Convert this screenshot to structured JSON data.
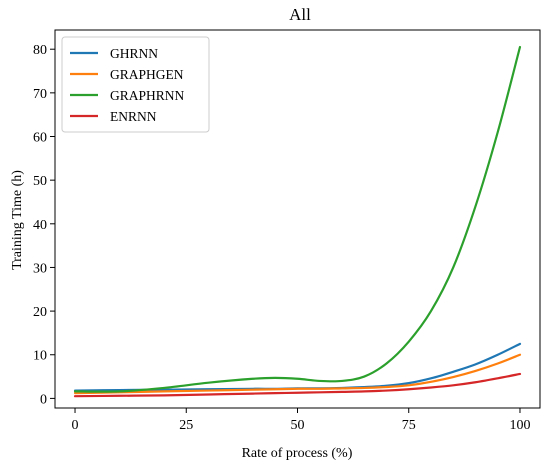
{
  "chart_data": {
    "type": "line",
    "title": "All",
    "xlabel": "Rate of process (%)",
    "ylabel": "Training Time (h)",
    "xlim": [
      -4.5,
      104.5
    ],
    "ylim": [
      -2.2,
      84.4
    ],
    "xticks": [
      0,
      25,
      50,
      75,
      100
    ],
    "yticks": [
      0,
      10,
      20,
      30,
      40,
      50,
      60,
      70,
      80
    ],
    "grid": false,
    "legend": "top-left",
    "x": [
      0,
      10,
      20,
      30,
      40,
      45,
      50,
      55,
      60,
      65,
      70,
      75,
      80,
      85,
      90,
      95,
      100
    ],
    "series": [
      {
        "name": "GHRNN",
        "color": "#1f77b4",
        "values": [
          1.8,
          1.9,
          2.0,
          2.1,
          2.2,
          2.2,
          2.3,
          2.3,
          2.4,
          2.6,
          2.9,
          3.5,
          4.6,
          6.1,
          7.8,
          10.0,
          12.5
        ]
      },
      {
        "name": "GRAPHGEN",
        "color": "#ff7f0e",
        "values": [
          1.2,
          1.4,
          1.6,
          1.8,
          2.0,
          2.1,
          2.2,
          2.2,
          2.3,
          2.4,
          2.6,
          3.0,
          3.8,
          4.9,
          6.3,
          8.0,
          10.0
        ]
      },
      {
        "name": "GRAPHRNN",
        "color": "#2ca02c",
        "values": [
          1.6,
          1.6,
          2.4,
          3.6,
          4.5,
          4.7,
          4.5,
          4.0,
          4.0,
          5.0,
          8.0,
          13.0,
          20.0,
          30.0,
          44.0,
          61.0,
          80.5
        ]
      },
      {
        "name": "ENRNN",
        "color": "#d62728",
        "values": [
          0.5,
          0.6,
          0.7,
          0.9,
          1.1,
          1.2,
          1.3,
          1.4,
          1.5,
          1.6,
          1.8,
          2.1,
          2.5,
          3.0,
          3.7,
          4.6,
          5.6
        ]
      }
    ]
  }
}
